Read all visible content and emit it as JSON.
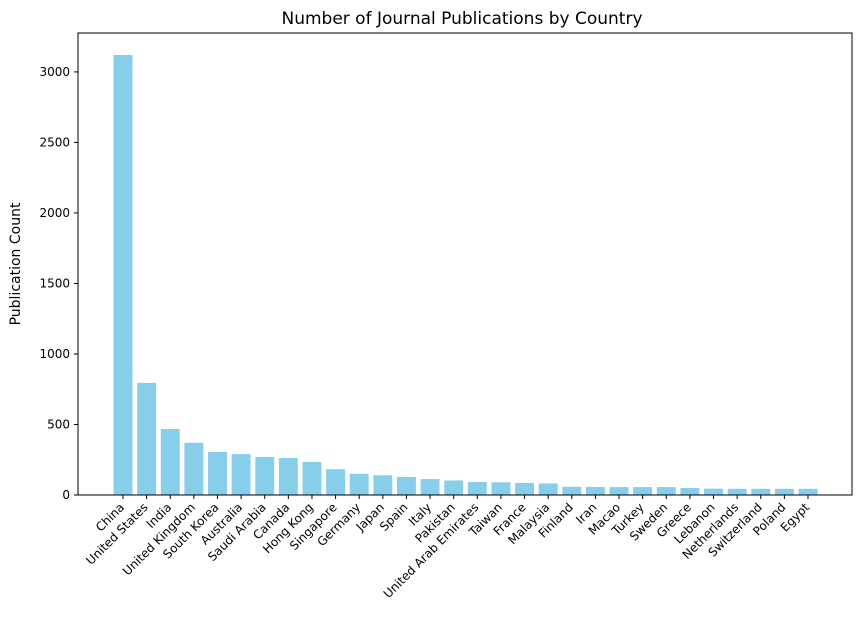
{
  "chart_data": {
    "type": "bar",
    "title": "Number of Journal Publications by Country",
    "xlabel": "",
    "ylabel": "Publication Count",
    "categories": [
      "China",
      "United States",
      "India",
      "United Kingdom",
      "South Korea",
      "Australia",
      "Saudi Arabia",
      "Canada",
      "Hong Kong",
      "Singapore",
      "Germany",
      "Japan",
      "Spain",
      "Italy",
      "Pakistan",
      "United Arab Emirates",
      "Taiwan",
      "France",
      "Malaysia",
      "Finland",
      "Iran",
      "Macao",
      "Turkey",
      "Sweden",
      "Greece",
      "Lebanon",
      "Netherlands",
      "Switzerland",
      "Poland",
      "Egypt"
    ],
    "values": [
      3120,
      795,
      468,
      370,
      305,
      290,
      270,
      262,
      235,
      183,
      150,
      140,
      128,
      113,
      103,
      92,
      90,
      85,
      82,
      58,
      57,
      56,
      56,
      56,
      50,
      45,
      44,
      44,
      44,
      44
    ],
    "ylim": [
      0,
      3276
    ],
    "yticks": [
      0,
      500,
      1000,
      1500,
      2000,
      2500,
      3000
    ],
    "grid": false,
    "bar_color": "#87ceeb"
  }
}
